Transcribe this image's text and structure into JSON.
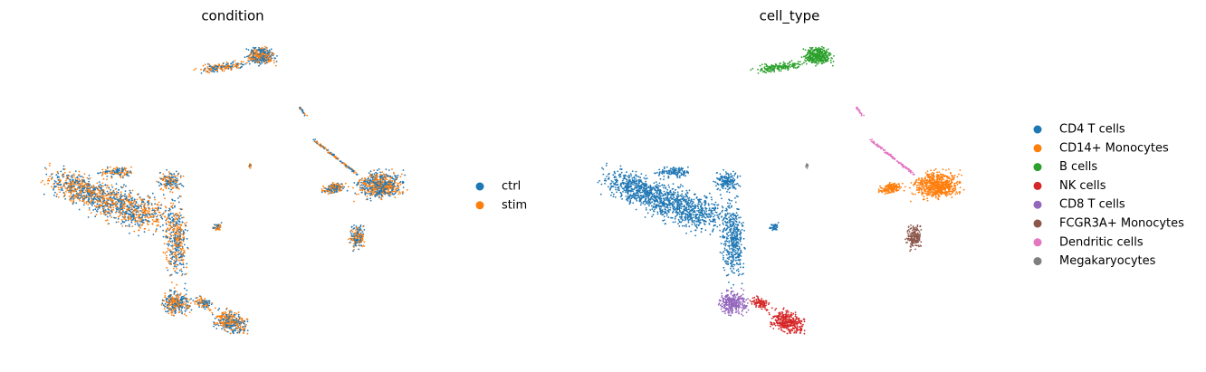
{
  "chart_data": [
    {
      "type": "scatter",
      "title": "condition",
      "series": [
        {
          "name": "ctrl",
          "color": "#1f77b4"
        },
        {
          "name": "stim",
          "color": "#ff7f0e"
        }
      ]
    },
    {
      "type": "scatter",
      "title": "cell_type",
      "series": [
        {
          "name": "CD4 T cells",
          "color": "#1f77b4"
        },
        {
          "name": "CD14+ Monocytes",
          "color": "#ff7f0e"
        },
        {
          "name": "B cells",
          "color": "#2ca02c"
        },
        {
          "name": "NK cells",
          "color": "#d62728"
        },
        {
          "name": "CD8 T cells",
          "color": "#9467bd"
        },
        {
          "name": "FCGR3A+ Monocytes",
          "color": "#8c564b"
        },
        {
          "name": "Dendritic cells",
          "color": "#e377c2"
        },
        {
          "name": "Megakaryocytes",
          "color": "#7f7f7f"
        }
      ]
    }
  ]
}
